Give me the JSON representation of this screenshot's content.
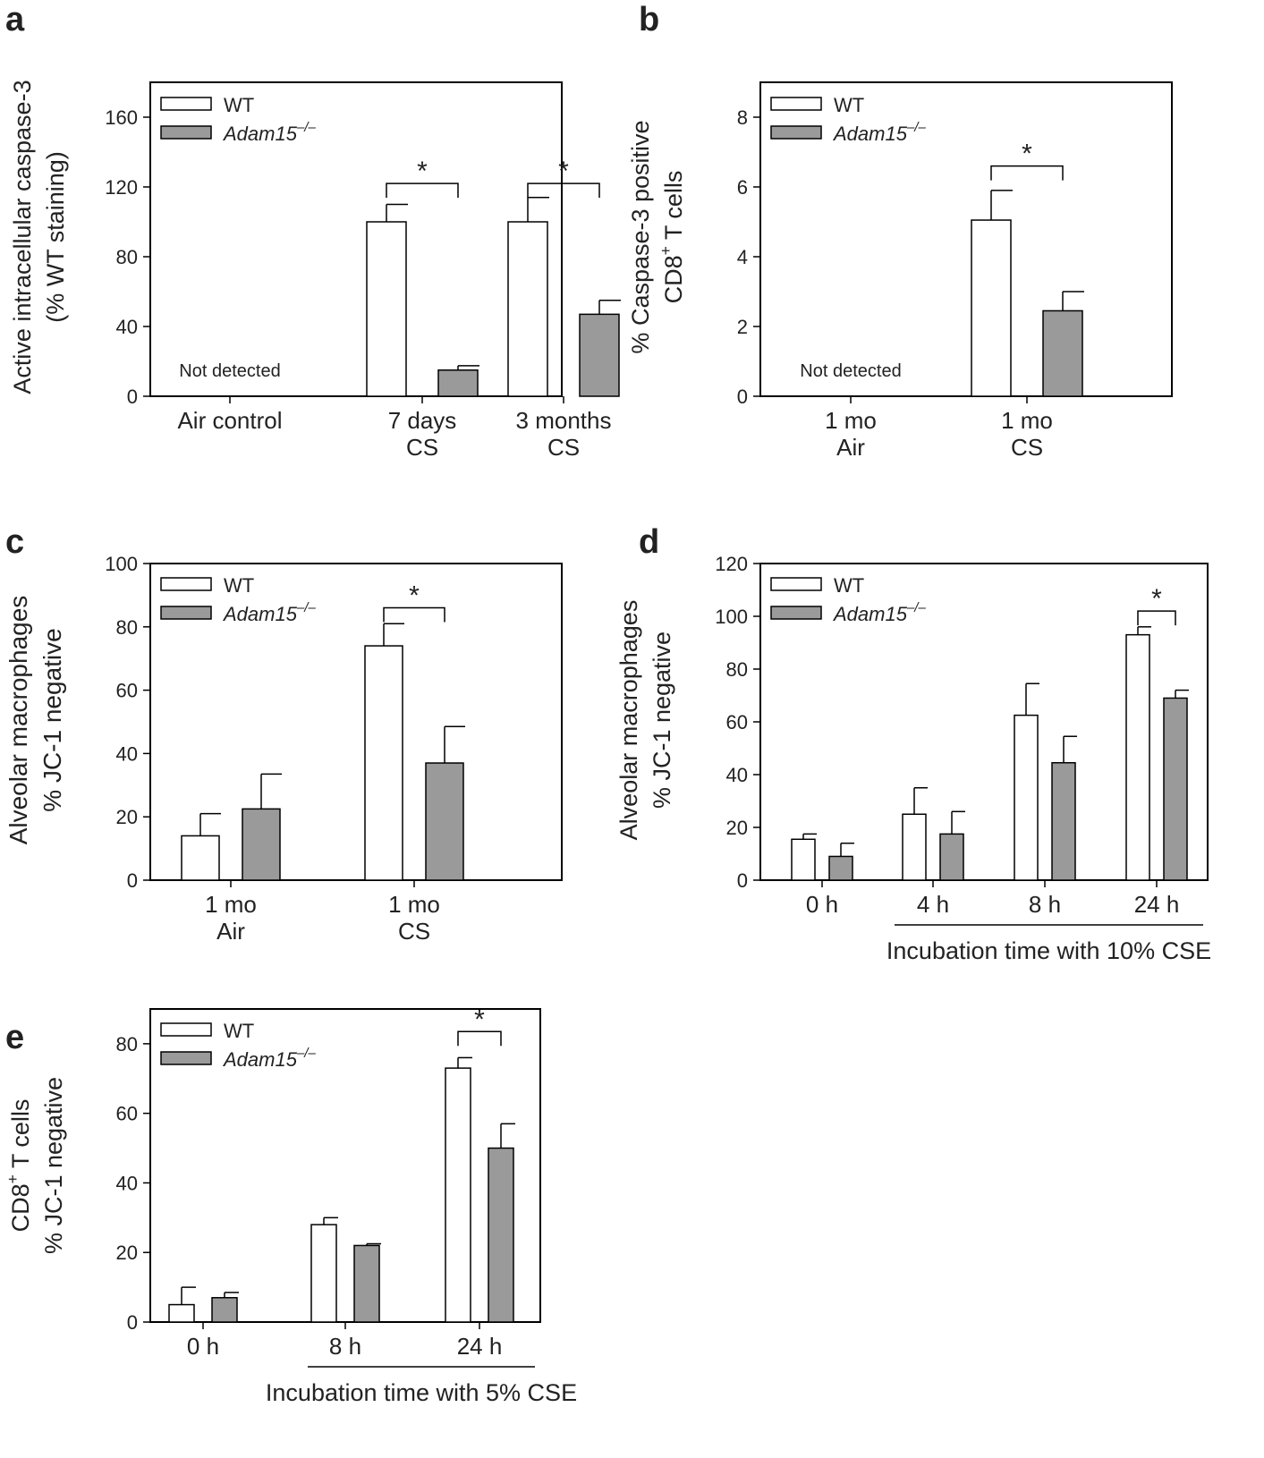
{
  "colors": {
    "wt": "#ffffff",
    "ko": "#9a9a9a",
    "stroke": "#000000",
    "text": "#222222"
  },
  "legend": {
    "wt": "WT",
    "ko": "Adam15",
    "ko_sup": "–/–"
  },
  "chart_data": [
    {
      "panel": "a",
      "type": "bar",
      "ylabel_lines": [
        "Active intracellular caspase-3",
        "(% WT staining)"
      ],
      "ylim": [
        0,
        180
      ],
      "yticks": [
        0,
        40,
        80,
        120,
        160
      ],
      "groups": [
        {
          "label_lines": [
            "Air control"
          ],
          "bars": []
        },
        {
          "label_lines": [
            "7 days",
            "CS"
          ],
          "bars": [
            {
              "series": "WT",
              "value": 100,
              "error": 10
            },
            {
              "series": "Adam15-/-",
              "value": 15,
              "error": 2.5
            }
          ]
        },
        {
          "label_lines": [
            "3 months",
            "CS"
          ],
          "bars": [
            {
              "series": "WT",
              "value": 100,
              "error": 14
            },
            {
              "series": "Adam15-/-",
              "value": 47,
              "error": 8
            }
          ]
        }
      ],
      "annotations": [
        {
          "text": "Not detected",
          "group": 0
        }
      ],
      "significance": [
        {
          "group": 1,
          "y": 122,
          "text": "*"
        },
        {
          "group": 2,
          "y": 122,
          "text": "*"
        }
      ]
    },
    {
      "panel": "b",
      "type": "bar",
      "ylabel_lines": [
        "% Caspase-3 positive",
        "CD8",
        "+",
        " T cells"
      ],
      "ylim": [
        0,
        9
      ],
      "yticks": [
        0,
        2,
        4,
        6,
        8
      ],
      "groups": [
        {
          "label_lines": [
            "1 mo",
            "Air"
          ],
          "bars": []
        },
        {
          "label_lines": [
            "1 mo",
            "CS"
          ],
          "bars": [
            {
              "series": "WT",
              "value": 5.05,
              "error": 0.85
            },
            {
              "series": "Adam15-/-",
              "value": 2.45,
              "error": 0.55
            }
          ]
        }
      ],
      "annotations": [
        {
          "text": "Not detected",
          "group": 0
        }
      ],
      "significance": [
        {
          "group": 1,
          "y": 6.6,
          "text": "*"
        }
      ]
    },
    {
      "panel": "c",
      "type": "bar",
      "ylabel_lines": [
        "Alveolar macrophages",
        "% JC-1 negative"
      ],
      "ylim": [
        0,
        100
      ],
      "yticks": [
        0,
        20,
        40,
        60,
        80,
        100
      ],
      "groups": [
        {
          "label_lines": [
            "1 mo",
            "Air"
          ],
          "bars": [
            {
              "series": "WT",
              "value": 14,
              "error": 7
            },
            {
              "series": "Adam15-/-",
              "value": 22.5,
              "error": 11
            }
          ]
        },
        {
          "label_lines": [
            "1 mo",
            "CS"
          ],
          "bars": [
            {
              "series": "WT",
              "value": 74,
              "error": 7
            },
            {
              "series": "Adam15-/-",
              "value": 37,
              "error": 11.5
            }
          ]
        }
      ],
      "annotations": [],
      "significance": [
        {
          "group": 1,
          "y": 86,
          "text": "*"
        }
      ]
    },
    {
      "panel": "d",
      "type": "bar",
      "ylabel_lines": [
        "Alveolar macrophages",
        "% JC-1 negative"
      ],
      "ylim": [
        0,
        120
      ],
      "yticks": [
        0,
        20,
        40,
        60,
        80,
        100,
        120
      ],
      "xlabel": "Incubation time with 10% CSE",
      "groups": [
        {
          "label_lines": [
            "0 h"
          ],
          "bars": [
            {
              "series": "WT",
              "value": 15.5,
              "error": 2
            },
            {
              "series": "Adam15-/-",
              "value": 9,
              "error": 5
            }
          ]
        },
        {
          "label_lines": [
            "4 h"
          ],
          "bars": [
            {
              "series": "WT",
              "value": 25,
              "error": 10
            },
            {
              "series": "Adam15-/-",
              "value": 17.5,
              "error": 8.5
            }
          ]
        },
        {
          "label_lines": [
            "8 h"
          ],
          "bars": [
            {
              "series": "WT",
              "value": 62.5,
              "error": 12
            },
            {
              "series": "Adam15-/-",
              "value": 44.5,
              "error": 10
            }
          ]
        },
        {
          "label_lines": [
            "24 h"
          ],
          "bars": [
            {
              "series": "WT",
              "value": 93,
              "error": 3
            },
            {
              "series": "Adam15-/-",
              "value": 69,
              "error": 3
            }
          ]
        }
      ],
      "annotations": [],
      "significance": [
        {
          "group": 3,
          "y": 102,
          "text": "*"
        }
      ]
    },
    {
      "panel": "e",
      "type": "bar",
      "ylabel_lines": [
        "CD8",
        "+",
        " T cells",
        "% JC-1 negative"
      ],
      "ylim": [
        0,
        90
      ],
      "yticks": [
        0,
        20,
        40,
        60,
        80
      ],
      "xlabel": "Incubation time with 5% CSE",
      "groups": [
        {
          "label_lines": [
            "0 h"
          ],
          "bars": [
            {
              "series": "WT",
              "value": 5,
              "error": 5
            },
            {
              "series": "Adam15-/-",
              "value": 7,
              "error": 1.5
            }
          ]
        },
        {
          "label_lines": [
            "8 h"
          ],
          "bars": [
            {
              "series": "WT",
              "value": 28,
              "error": 2
            },
            {
              "series": "Adam15-/-",
              "value": 22,
              "error": 0.5
            }
          ]
        },
        {
          "label_lines": [
            "24 h"
          ],
          "bars": [
            {
              "series": "WT",
              "value": 73,
              "error": 3
            },
            {
              "series": "Adam15-/-",
              "value": 50,
              "error": 7
            }
          ]
        }
      ],
      "annotations": [],
      "significance": [
        {
          "group": 2,
          "y": 83.5,
          "text": "*"
        }
      ]
    }
  ]
}
